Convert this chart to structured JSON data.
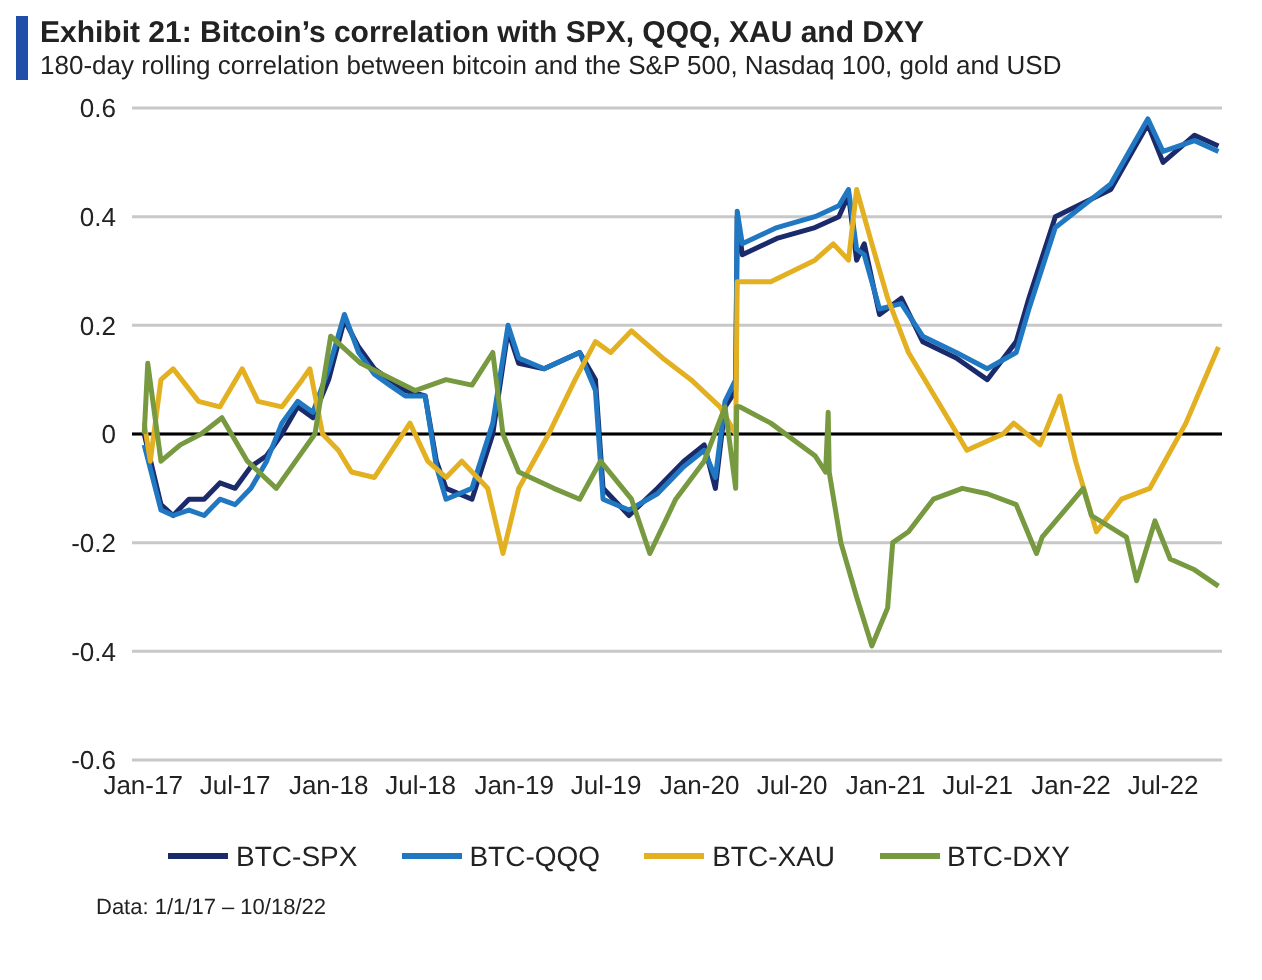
{
  "chart_data": {
    "type": "line",
    "title": "Exhibit 21: Bitcoin’s correlation with SPX, QQQ, XAU and DXY",
    "subtitle": "180-day rolling correlation between bitcoin and the S&P 500, Nasdaq 100, gold and USD",
    "annotations": [
      "Data: 1/1/17 – 10/18/22"
    ],
    "xlim": [
      "2016-12-10",
      "2022-10-25"
    ],
    "xticks": [
      {
        "value": "2017-01-01",
        "label": "Jan-17"
      },
      {
        "value": "2017-07-01",
        "label": "Jul-17"
      },
      {
        "value": "2018-01-01",
        "label": "Jan-18"
      },
      {
        "value": "2018-07-01",
        "label": "Jul-18"
      },
      {
        "value": "2019-01-01",
        "label": "Jan-19"
      },
      {
        "value": "2019-07-01",
        "label": "Jul-19"
      },
      {
        "value": "2020-01-01",
        "label": "Jan-20"
      },
      {
        "value": "2020-07-01",
        "label": "Jul-20"
      },
      {
        "value": "2021-01-01",
        "label": "Jan-21"
      },
      {
        "value": "2021-07-01",
        "label": "Jul-21"
      },
      {
        "value": "2022-01-01",
        "label": "Jan-22"
      },
      {
        "value": "2022-07-01",
        "label": "Jul-22"
      }
    ],
    "ylim": [
      -0.6,
      0.6
    ],
    "yticks": [
      -0.6,
      -0.4,
      -0.2,
      0,
      0.2,
      0.4,
      0.6
    ],
    "grid": "y",
    "legend": "bottom",
    "marker": "none",
    "line_style": "solid",
    "ref_lines": [
      {
        "axis": "y",
        "value": 0,
        "color": "#000000"
      }
    ],
    "series": [
      {
        "name": "BTC-SPX",
        "color": "#1b2a6b",
        "x": [
          "2017-01-03",
          "2017-02-05",
          "2017-03-01",
          "2017-04-01",
          "2017-05-01",
          "2017-06-01",
          "2017-07-01",
          "2017-08-01",
          "2017-09-01",
          "2017-10-01",
          "2017-11-01",
          "2017-12-01",
          "2018-01-01",
          "2018-02-01",
          "2018-03-01",
          "2018-04-01",
          "2018-05-01",
          "2018-06-01",
          "2018-07-10",
          "2018-08-01",
          "2018-08-20",
          "2018-10-10",
          "2018-11-20",
          "2018-12-20",
          "2019-01-10",
          "2019-03-01",
          "2019-05-10",
          "2019-06-10",
          "2019-06-25",
          "2019-08-15",
          "2019-10-10",
          "2019-12-01",
          "2020-01-10",
          "2020-02-01",
          "2020-02-20",
          "2020-03-12",
          "2020-03-15",
          "2020-03-25",
          "2020-06-01",
          "2020-08-15",
          "2020-10-01",
          "2020-10-20",
          "2020-11-05",
          "2020-11-20",
          "2020-12-20",
          "2021-02-01",
          "2021-03-15",
          "2021-05-20",
          "2021-07-20",
          "2021-09-15",
          "2021-10-10",
          "2021-12-01",
          "2022-03-20",
          "2022-06-01",
          "2022-07-01",
          "2022-09-01",
          "2022-10-18"
        ],
        "values": [
          0.0,
          -0.13,
          -0.15,
          -0.12,
          -0.12,
          -0.09,
          -0.1,
          -0.06,
          -0.04,
          0.0,
          0.05,
          0.03,
          0.1,
          0.21,
          0.16,
          0.12,
          0.1,
          0.08,
          0.07,
          -0.05,
          -0.1,
          -0.12,
          0.0,
          0.19,
          0.13,
          0.12,
          0.15,
          0.1,
          -0.1,
          -0.15,
          -0.1,
          -0.05,
          -0.02,
          -0.1,
          0.05,
          0.08,
          0.4,
          0.33,
          0.36,
          0.38,
          0.4,
          0.44,
          0.32,
          0.35,
          0.22,
          0.25,
          0.17,
          0.14,
          0.1,
          0.17,
          0.25,
          0.4,
          0.45,
          0.57,
          0.5,
          0.55,
          0.53
        ]
      },
      {
        "name": "BTC-QQQ",
        "color": "#1f78c1",
        "x": [
          "2017-01-03",
          "2017-02-05",
          "2017-03-01",
          "2017-04-01",
          "2017-05-01",
          "2017-06-01",
          "2017-07-01",
          "2017-08-01",
          "2017-09-01",
          "2017-10-01",
          "2017-11-01",
          "2017-12-01",
          "2018-01-01",
          "2018-02-01",
          "2018-03-01",
          "2018-04-01",
          "2018-05-01",
          "2018-06-01",
          "2018-07-10",
          "2018-08-01",
          "2018-08-20",
          "2018-10-10",
          "2018-11-20",
          "2018-12-20",
          "2019-01-10",
          "2019-03-01",
          "2019-05-10",
          "2019-06-10",
          "2019-06-25",
          "2019-08-15",
          "2019-10-10",
          "2019-12-01",
          "2020-01-10",
          "2020-02-01",
          "2020-02-20",
          "2020-03-12",
          "2020-03-15",
          "2020-03-25",
          "2020-06-01",
          "2020-08-15",
          "2020-10-01",
          "2020-10-20",
          "2020-11-05",
          "2020-11-20",
          "2020-12-20",
          "2021-02-01",
          "2021-03-15",
          "2021-05-20",
          "2021-07-20",
          "2021-09-15",
          "2021-10-10",
          "2021-12-01",
          "2022-03-20",
          "2022-06-01",
          "2022-07-01",
          "2022-09-01",
          "2022-10-18"
        ],
        "values": [
          -0.02,
          -0.14,
          -0.15,
          -0.14,
          -0.15,
          -0.12,
          -0.13,
          -0.1,
          -0.05,
          0.02,
          0.06,
          0.04,
          0.12,
          0.22,
          0.15,
          0.11,
          0.09,
          0.07,
          0.07,
          -0.06,
          -0.12,
          -0.1,
          0.02,
          0.2,
          0.14,
          0.12,
          0.15,
          0.08,
          -0.12,
          -0.14,
          -0.11,
          -0.06,
          -0.03,
          -0.08,
          0.06,
          0.1,
          0.41,
          0.35,
          0.38,
          0.4,
          0.42,
          0.45,
          0.34,
          0.33,
          0.23,
          0.24,
          0.18,
          0.15,
          0.12,
          0.15,
          0.23,
          0.38,
          0.46,
          0.58,
          0.52,
          0.54,
          0.52
        ]
      },
      {
        "name": "BTC-XAU",
        "color": "#e3b021",
        "x": [
          "2017-01-03",
          "2017-01-15",
          "2017-02-05",
          "2017-03-01",
          "2017-04-20",
          "2017-06-01",
          "2017-07-15",
          "2017-08-15",
          "2017-10-01",
          "2017-11-10",
          "2017-11-25",
          "2017-12-20",
          "2018-01-20",
          "2018-02-15",
          "2018-04-01",
          "2018-06-10",
          "2018-07-15",
          "2018-08-20",
          "2018-09-20",
          "2018-11-10",
          "2018-12-10",
          "2019-01-10",
          "2019-03-10",
          "2019-05-01",
          "2019-06-10",
          "2019-07-10",
          "2019-08-20",
          "2019-10-20",
          "2019-12-15",
          "2020-02-10",
          "2020-03-12",
          "2020-03-15",
          "2020-05-20",
          "2020-08-15",
          "2020-09-20",
          "2020-10-20",
          "2020-11-05",
          "2020-12-05",
          "2021-01-05",
          "2021-02-15",
          "2021-04-20",
          "2021-06-10",
          "2021-08-20",
          "2021-09-10",
          "2021-11-01",
          "2021-12-10",
          "2022-01-10",
          "2022-02-20",
          "2022-04-10",
          "2022-06-05",
          "2022-08-15",
          "2022-10-18"
        ],
        "values": [
          0.02,
          -0.05,
          0.1,
          0.12,
          0.06,
          0.05,
          0.12,
          0.06,
          0.05,
          0.1,
          0.12,
          0.0,
          -0.03,
          -0.07,
          -0.08,
          0.02,
          -0.05,
          -0.08,
          -0.05,
          -0.1,
          -0.22,
          -0.1,
          0.0,
          0.1,
          0.17,
          0.15,
          0.19,
          0.14,
          0.1,
          0.05,
          0.0,
          0.28,
          0.28,
          0.32,
          0.35,
          0.32,
          0.45,
          0.35,
          0.25,
          0.15,
          0.05,
          -0.03,
          0.0,
          0.02,
          -0.02,
          0.07,
          -0.05,
          -0.18,
          -0.12,
          -0.1,
          0.02,
          0.16
        ]
      },
      {
        "name": "BTC-DXY",
        "color": "#77993f",
        "x": [
          "2017-01-03",
          "2017-01-10",
          "2017-02-05",
          "2017-03-15",
          "2017-04-25",
          "2017-06-05",
          "2017-07-25",
          "2017-09-20",
          "2017-10-28",
          "2017-12-05",
          "2018-01-05",
          "2018-03-05",
          "2018-06-20",
          "2018-08-20",
          "2018-10-10",
          "2018-11-20",
          "2018-12-10",
          "2019-01-10",
          "2019-03-20",
          "2019-05-10",
          "2019-06-20",
          "2019-08-20",
          "2019-09-25",
          "2019-11-15",
          "2020-01-10",
          "2020-02-20",
          "2020-03-12",
          "2020-03-14",
          "2020-03-20",
          "2020-05-20",
          "2020-08-15",
          "2020-09-05",
          "2020-09-10",
          "2020-09-12",
          "2020-10-05",
          "2020-11-05",
          "2020-12-05",
          "2021-01-05",
          "2021-01-15",
          "2021-02-15",
          "2021-04-05",
          "2021-06-01",
          "2021-07-20",
          "2021-09-15",
          "2021-10-25",
          "2021-11-05",
          "2022-01-25",
          "2022-02-10",
          "2022-04-20",
          "2022-05-10",
          "2022-06-15",
          "2022-07-15",
          "2022-09-01",
          "2022-10-18"
        ],
        "values": [
          0.0,
          0.13,
          -0.05,
          -0.02,
          0.0,
          0.03,
          -0.05,
          -0.1,
          -0.05,
          0.0,
          0.18,
          0.13,
          0.08,
          0.1,
          0.09,
          0.15,
          0.0,
          -0.07,
          -0.1,
          -0.12,
          -0.05,
          -0.12,
          -0.22,
          -0.12,
          -0.05,
          0.05,
          -0.1,
          0.05,
          0.05,
          0.02,
          -0.04,
          -0.07,
          0.04,
          -0.07,
          -0.2,
          -0.3,
          -0.39,
          -0.32,
          -0.2,
          -0.18,
          -0.12,
          -0.1,
          -0.11,
          -0.13,
          -0.22,
          -0.19,
          -0.1,
          -0.15,
          -0.19,
          -0.27,
          -0.16,
          -0.23,
          -0.25,
          -0.28
        ]
      }
    ]
  }
}
